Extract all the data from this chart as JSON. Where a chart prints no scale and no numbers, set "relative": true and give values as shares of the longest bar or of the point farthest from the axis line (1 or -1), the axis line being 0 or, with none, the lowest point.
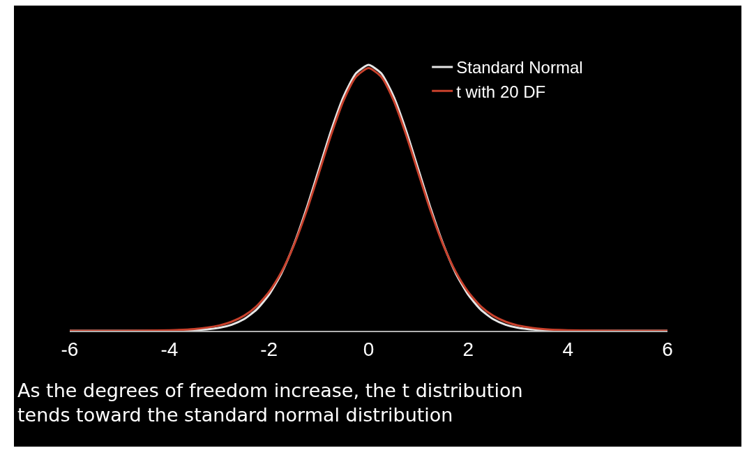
{
  "chart_data": {
    "type": "line",
    "relative": true,
    "x": [
      -6,
      -5,
      -4,
      -3.5,
      -3,
      -2.75,
      -2.5,
      -2.25,
      -2,
      -1.75,
      -1.5,
      -1.25,
      -1,
      -0.75,
      -0.5,
      -0.25,
      0,
      0.25,
      0.5,
      0.75,
      1,
      1.25,
      1.5,
      1.75,
      2,
      2.25,
      2.5,
      2.75,
      3,
      3.5,
      4,
      5,
      6
    ],
    "series": [
      {
        "name": "Standard Normal",
        "color": "#e6e6e6",
        "values": [
          0,
          0,
          0.0003,
          0.0022,
          0.0111,
          0.0228,
          0.0439,
          0.0796,
          0.1353,
          0.216,
          0.3247,
          0.458,
          0.6065,
          0.755,
          0.8825,
          0.969,
          1,
          0.969,
          0.8825,
          0.755,
          0.6065,
          0.458,
          0.3247,
          0.216,
          0.1353,
          0.0796,
          0.0439,
          0.0228,
          0.0111,
          0.0022,
          0.0003,
          0,
          0
        ]
      },
      {
        "name": "t with 20 DF",
        "color": "#c8412c",
        "values": [
          0,
          0.0002,
          0.0021,
          0.0065,
          0.02,
          0.0341,
          0.0568,
          0.0924,
          0.146,
          0.221,
          0.322,
          0.448,
          0.592,
          0.738,
          0.867,
          0.956,
          0.988,
          0.956,
          0.867,
          0.738,
          0.592,
          0.448,
          0.322,
          0.221,
          0.146,
          0.0924,
          0.0568,
          0.0341,
          0.02,
          0.0065,
          0.0021,
          0.0002,
          0
        ]
      }
    ],
    "xlim": [
      -6,
      6
    ],
    "xticks": [
      -6,
      -4,
      -2,
      0,
      2,
      4,
      6
    ],
    "legend": "top right",
    "grid": false,
    "marker": "none",
    "line_style": "solid",
    "annotations": [
      "As the degrees of freedom increase, the t distribution tends toward the standard normal distribution"
    ]
  }
}
